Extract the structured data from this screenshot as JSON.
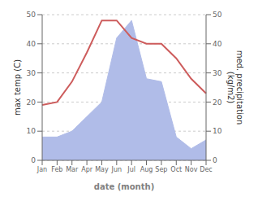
{
  "chart_data": {
    "type": "line",
    "xlabel": "date (month)",
    "ylabel": "max temp (C)",
    "y2label": "med. precipitation\n(kg/m2)",
    "categories": [
      "Jan",
      "Feb",
      "Mar",
      "Apr",
      "May",
      "Jun",
      "Jul",
      "Aug",
      "Sep",
      "Oct",
      "Nov",
      "Dec"
    ],
    "series": [
      {
        "type": "line",
        "color": "#cd5c5c",
        "values": [
          19,
          20,
          27,
          37,
          48,
          48,
          42,
          40,
          40,
          35,
          28,
          23
        ]
      },
      {
        "type": "area",
        "axis": "y2",
        "color": "#b0bce8",
        "values": [
          8,
          8,
          10,
          15,
          20,
          42,
          48,
          28,
          27,
          8,
          4,
          7
        ]
      }
    ],
    "ylim": [
      0,
      50
    ],
    "yticks": [
      0,
      10,
      20,
      30,
      40,
      50
    ],
    "y2lim": [
      0,
      50
    ],
    "y2ticks": [
      0,
      10,
      20,
      30,
      40,
      50
    ],
    "grid": true
  }
}
